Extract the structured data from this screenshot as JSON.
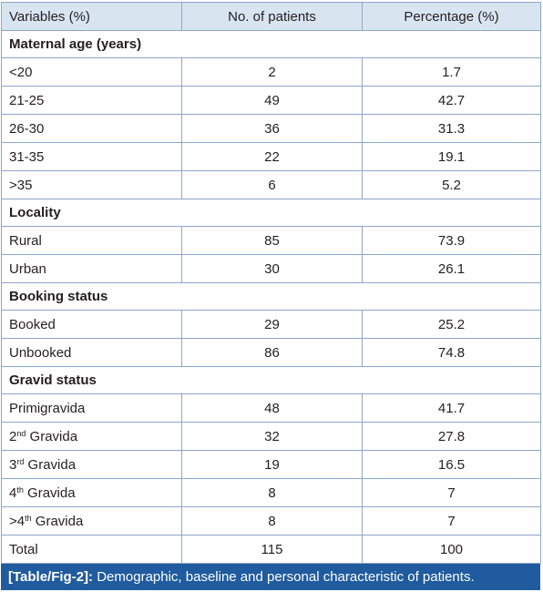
{
  "table": {
    "headers": [
      "Variables (%)",
      "No. of patients",
      "Percentage (%)"
    ],
    "sections": [
      {
        "title": "Maternal age (years)",
        "rows": [
          {
            "label": "<20",
            "patients": "2",
            "percentage": "1.7"
          },
          {
            "label": "21-25",
            "patients": "49",
            "percentage": "42.7"
          },
          {
            "label": "26-30",
            "patients": "36",
            "percentage": "31.3"
          },
          {
            "label": "31-35",
            "patients": "22",
            "percentage": "19.1"
          },
          {
            "label": ">35",
            "patients": "6",
            "percentage": "5.2"
          }
        ]
      },
      {
        "title": "Locality",
        "rows": [
          {
            "label": "Rural",
            "patients": "85",
            "percentage": "73.9"
          },
          {
            "label": "Urban",
            "patients": "30",
            "percentage": "26.1"
          }
        ]
      },
      {
        "title": "Booking status",
        "rows": [
          {
            "label": "Booked",
            "patients": "29",
            "percentage": "25.2"
          },
          {
            "label": "Unbooked",
            "patients": "86",
            "percentage": "74.8"
          }
        ]
      },
      {
        "title": "Gravid status",
        "rows": [
          {
            "label": "Primigravida",
            "patients": "48",
            "percentage": "41.7"
          },
          {
            "label_prefix": "2",
            "label_sup": "nd",
            "label_suffix": " Gravida",
            "patients": "32",
            "percentage": "27.8"
          },
          {
            "label_prefix": "3",
            "label_sup": "rd",
            "label_suffix": " Gravida",
            "patients": "19",
            "percentage": "16.5"
          },
          {
            "label_prefix": "4",
            "label_sup": "th",
            "label_suffix": " Gravida",
            "patients": "8",
            "percentage": "7"
          },
          {
            "label_prefix": ">4",
            "label_sup": "th",
            "label_suffix": " Gravida",
            "patients": "8",
            "percentage": "7"
          }
        ]
      }
    ],
    "total": {
      "label": "Total",
      "patients": "115",
      "percentage": "100"
    }
  },
  "caption": {
    "tag": "[Table/Fig-2]:",
    "text": " Demographic, baseline and personal characteristic of patients."
  },
  "colors": {
    "header_bg": "#d9e4f1",
    "border": "#8fa6c9",
    "caption_bg": "#1f5b9e",
    "caption_text": "#ffffff"
  }
}
